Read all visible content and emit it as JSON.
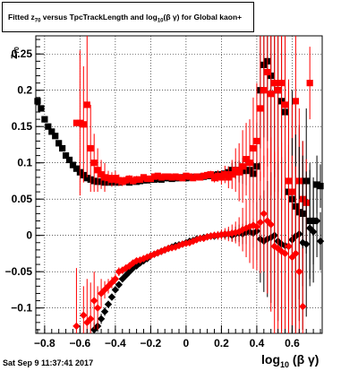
{
  "title": {
    "prefix": "Fitted ",
    "sym": "z",
    "sub": "70",
    "middle": " versus TpcTrackLength and log",
    "sub2": "10",
    "suffix": "(β γ) for Global kaon+"
  },
  "footer": {
    "date": "Sat Sep  9 11:37:41 2017"
  },
  "chart_data": {
    "type": "scatter",
    "title": "Fitted z70 versus TpcTrackLength and log10(β γ) for Global kaon+",
    "xlabel": "log10(β γ)",
    "ylabel": "z70",
    "xlim": [
      -0.85,
      0.77
    ],
    "ylim": [
      -0.135,
      0.275
    ],
    "x_ticks": [
      -0.8,
      -0.6,
      -0.4,
      -0.2,
      0,
      0.2,
      0.4,
      0.6
    ],
    "x_tick_labels": [
      "−0.8",
      "−0.6",
      "−0.4",
      "−0.2",
      "0",
      "0.2",
      "0.4",
      "0.6"
    ],
    "y_ticks": [
      -0.1,
      -0.05,
      0,
      0.05,
      0.1,
      0.15,
      0.2,
      0.25
    ],
    "y_tick_labels": [
      "−0.1",
      "−0.05",
      "0",
      "0.05",
      "0.1",
      "0.15",
      "0.2",
      "0.25"
    ],
    "grid": true,
    "series": [
      {
        "color": "#000000",
        "band": "upper",
        "x": [
          -0.84,
          -0.82,
          -0.8,
          -0.78,
          -0.76,
          -0.74,
          -0.72,
          -0.7,
          -0.68,
          -0.66,
          -0.64,
          -0.62,
          -0.6,
          -0.58,
          -0.56,
          -0.54,
          -0.52,
          -0.5,
          -0.48,
          -0.46,
          -0.44,
          -0.42,
          -0.4,
          -0.38,
          -0.36,
          -0.34,
          -0.32,
          -0.3,
          -0.28,
          -0.26,
          -0.24,
          -0.22,
          -0.2,
          -0.18,
          -0.16,
          -0.14,
          -0.12,
          -0.1,
          -0.08,
          -0.06,
          -0.04,
          -0.02,
          0,
          0.02,
          0.04,
          0.06,
          0.08,
          0.1,
          0.12,
          0.14,
          0.16,
          0.18,
          0.2,
          0.22,
          0.24,
          0.26,
          0.28,
          0.3,
          0.32,
          0.34,
          0.36,
          0.38,
          0.4,
          0.42,
          0.44,
          0.46,
          0.48,
          0.5,
          0.52,
          0.54,
          0.56,
          0.58,
          0.6,
          0.62,
          0.64,
          0.66,
          0.68,
          0.7,
          0.72,
          0.74,
          0.76
        ],
        "y": [
          0.185,
          0.175,
          0.16,
          0.15,
          0.143,
          0.137,
          0.127,
          0.12,
          0.11,
          0.104,
          0.097,
          0.092,
          0.087,
          0.083,
          0.079,
          0.077,
          0.075,
          0.074,
          0.074,
          0.073,
          0.073,
          0.074,
          0.073,
          0.073,
          0.074,
          0.074,
          0.073,
          0.075,
          0.074,
          0.075,
          0.076,
          0.076,
          0.077,
          0.077,
          0.078,
          0.077,
          0.079,
          0.079,
          0.078,
          0.079,
          0.079,
          0.08,
          0.079,
          0.08,
          0.08,
          0.081,
          0.081,
          0.081,
          0.082,
          0.082,
          0.083,
          0.084,
          0.083,
          0.085,
          0.087,
          0.09,
          0.09,
          0.088,
          0.089,
          0.089,
          0.09,
          0.085,
          0.095,
          0.2,
          0.235,
          0.24,
          0.22,
          0.21,
          0.2,
          0.185,
          0.17,
          0.06,
          0.05,
          0.04,
          0.032,
          0.03,
          0.075,
          0.02,
          0.02,
          0.07,
          0.068
        ],
        "err": [
          0,
          0,
          0,
          0,
          0,
          0,
          0,
          0,
          0,
          0,
          0,
          0,
          0.005,
          0.005,
          0.004,
          0.003,
          0.003,
          0.003,
          0.002,
          0.002,
          0.002,
          0.002,
          0.002,
          0.002,
          0.002,
          0.002,
          0.002,
          0.002,
          0.002,
          0.002,
          0.002,
          0.002,
          0.002,
          0.002,
          0.002,
          0.002,
          0.002,
          0.002,
          0.002,
          0.002,
          0.002,
          0.002,
          0.002,
          0.002,
          0.002,
          0.002,
          0.002,
          0.002,
          0.003,
          0.003,
          0.003,
          0.004,
          0.005,
          0.006,
          0.008,
          0.01,
          0.012,
          0.015,
          0.018,
          0.02,
          0.03,
          0.04,
          0.06,
          0.08,
          0.1,
          0.11,
          0.12,
          0.13,
          0.14,
          0.15,
          0.15,
          0.15,
          0.15,
          0.14,
          0.12,
          0.1,
          0.1,
          0.08,
          0.06,
          0.04,
          0.03
        ]
      },
      {
        "color": "#ff0000",
        "band": "upper",
        "x": [
          -0.62,
          -0.6,
          -0.58,
          -0.56,
          -0.54,
          -0.52,
          -0.5,
          -0.48,
          -0.46,
          -0.44,
          -0.42,
          -0.4,
          -0.38,
          -0.36,
          -0.34,
          -0.32,
          -0.3,
          -0.28,
          -0.26,
          -0.24,
          -0.22,
          -0.2,
          -0.18,
          -0.16,
          -0.14,
          -0.12,
          -0.1,
          -0.08,
          -0.06,
          -0.04,
          -0.02,
          0,
          0.02,
          0.04,
          0.06,
          0.08,
          0.1,
          0.12,
          0.14,
          0.16,
          0.18,
          0.2,
          0.22,
          0.24,
          0.26,
          0.28,
          0.3,
          0.32,
          0.34,
          0.36,
          0.38,
          0.4,
          0.42,
          0.44,
          0.46,
          0.48,
          0.5,
          0.52,
          0.54,
          0.56,
          0.58,
          0.6,
          0.62,
          0.64,
          0.66,
          0.68,
          0.7
        ],
        "y": [
          0.155,
          0.155,
          0.153,
          0.18,
          0.12,
          0.1,
          0.09,
          0.084,
          0.08,
          0.079,
          0.077,
          0.079,
          0.076,
          0.074,
          0.076,
          0.078,
          0.075,
          0.077,
          0.077,
          0.08,
          0.078,
          0.078,
          0.081,
          0.082,
          0.08,
          0.081,
          0.081,
          0.08,
          0.081,
          0.08,
          0.079,
          0.082,
          0.081,
          0.079,
          0.081,
          0.08,
          0.082,
          0.083,
          0.084,
          0.079,
          0.082,
          0.08,
          0.084,
          0.08,
          0.084,
          0.09,
          0.087,
          0.095,
          0.105,
          0.1,
          0.12,
          0.13,
          0.175,
          0.2,
          0.225,
          0.195,
          0.21,
          0.2,
          0.21,
          0.18,
          0.075,
          0.06,
          0.185,
          0.075,
          0.05,
          0.045,
          0.21
        ],
        "err": [
          0,
          0.1,
          0.08,
          0.1,
          0.06,
          0.04,
          0.03,
          0.02,
          0.02,
          0.01,
          0.01,
          0.01,
          0.008,
          0.006,
          0.006,
          0.005,
          0.005,
          0.005,
          0.004,
          0.004,
          0.004,
          0.004,
          0.004,
          0.004,
          0.004,
          0.004,
          0.004,
          0.004,
          0.004,
          0.004,
          0.004,
          0.004,
          0.004,
          0.004,
          0.004,
          0.004,
          0.004,
          0.005,
          0.005,
          0.006,
          0.008,
          0.01,
          0.012,
          0.015,
          0.02,
          0.03,
          0.04,
          0.05,
          0.05,
          0.06,
          0.07,
          0.08,
          0.1,
          0.12,
          0.13,
          0.14,
          0.15,
          0.15,
          0.15,
          0.14,
          0.14,
          0.12,
          0.1,
          0.1,
          0.08,
          0.06,
          0.05
        ]
      },
      {
        "color": "#000000",
        "band": "lower",
        "x": [
          -0.52,
          -0.5,
          -0.48,
          -0.46,
          -0.44,
          -0.42,
          -0.4,
          -0.38,
          -0.36,
          -0.34,
          -0.32,
          -0.3,
          -0.28,
          -0.26,
          -0.24,
          -0.22,
          -0.2,
          -0.18,
          -0.16,
          -0.14,
          -0.12,
          -0.1,
          -0.08,
          -0.06,
          -0.04,
          -0.02,
          0,
          0.02,
          0.04,
          0.06,
          0.08,
          0.1,
          0.12,
          0.14,
          0.16,
          0.18,
          0.2,
          0.22,
          0.24,
          0.26,
          0.28,
          0.3,
          0.32,
          0.34,
          0.36,
          0.38,
          0.4,
          0.42,
          0.44,
          0.46,
          0.48,
          0.5,
          0.52,
          0.54,
          0.56,
          0.58,
          0.6,
          0.62,
          0.64,
          0.66,
          0.68,
          0.7,
          0.72,
          0.74,
          0.76
        ],
        "y": [
          -0.13,
          -0.125,
          -0.115,
          -0.105,
          -0.095,
          -0.085,
          -0.075,
          -0.068,
          -0.06,
          -0.055,
          -0.05,
          -0.045,
          -0.042,
          -0.038,
          -0.035,
          -0.032,
          -0.028,
          -0.026,
          -0.024,
          -0.022,
          -0.02,
          -0.018,
          -0.016,
          -0.014,
          -0.013,
          -0.012,
          -0.01,
          -0.008,
          -0.007,
          -0.005,
          -0.004,
          -0.003,
          -0.002,
          -0.001,
          -0.001,
          0,
          0.001,
          0.001,
          0.002,
          0,
          0.002,
          0.003,
          0.002,
          0.004,
          0.005,
          0.003,
          0.006,
          -0.005,
          -0.008,
          -0.005,
          -0.003,
          0,
          -0.008,
          -0.012,
          -0.014,
          -0.015,
          -0.006,
          -0.001,
          0.002,
          -0.01,
          -0.012,
          0.01,
          0.005,
          0.02,
          -0.008
        ],
        "err": [
          0.01,
          0.008,
          0.007,
          0.006,
          0.005,
          0.004,
          0.004,
          0.003,
          0.003,
          0.003,
          0.003,
          0.003,
          0.003,
          0.003,
          0.003,
          0.003,
          0.003,
          0.003,
          0.003,
          0.003,
          0.003,
          0.003,
          0.003,
          0.003,
          0.003,
          0.003,
          0.003,
          0.003,
          0.003,
          0.003,
          0.003,
          0.003,
          0.003,
          0.003,
          0.004,
          0.004,
          0.005,
          0.006,
          0.007,
          0.008,
          0.01,
          0.012,
          0.014,
          0.016,
          0.018,
          0.02,
          0.04,
          0.06,
          0.07,
          0.08,
          0.09,
          0.1,
          0.11,
          0.12,
          0.13,
          0.14,
          0.14,
          0.14,
          0.12,
          0.12,
          0.1,
          0.08,
          0.07,
          0.05,
          0.04
        ]
      },
      {
        "color": "#ff0000",
        "band": "lower",
        "x": [
          -0.62,
          -0.58,
          -0.56,
          -0.54,
          -0.52,
          -0.5,
          -0.48,
          -0.46,
          -0.44,
          -0.42,
          -0.4,
          -0.38,
          -0.36,
          -0.34,
          -0.32,
          -0.3,
          -0.28,
          -0.26,
          -0.24,
          -0.22,
          -0.2,
          -0.18,
          -0.16,
          -0.14,
          -0.12,
          -0.1,
          -0.08,
          -0.06,
          -0.04,
          -0.02,
          0,
          0.02,
          0.04,
          0.06,
          0.08,
          0.1,
          0.12,
          0.14,
          0.16,
          0.18,
          0.2,
          0.22,
          0.24,
          0.26,
          0.28,
          0.3,
          0.32,
          0.34,
          0.36,
          0.38,
          0.4,
          0.42,
          0.44,
          0.46,
          0.48,
          0.5,
          0.52,
          0.54,
          0.56,
          0.58,
          0.6,
          0.62,
          0.64,
          0.66
        ],
        "y": [
          -0.125,
          -0.11,
          -0.12,
          -0.115,
          -0.09,
          -0.1,
          -0.08,
          -0.075,
          -0.07,
          -0.065,
          -0.06,
          -0.05,
          -0.048,
          -0.045,
          -0.042,
          -0.038,
          -0.035,
          -0.034,
          -0.032,
          -0.03,
          -0.028,
          -0.026,
          -0.024,
          -0.022,
          -0.02,
          -0.018,
          -0.017,
          -0.016,
          -0.014,
          -0.012,
          -0.011,
          -0.01,
          -0.008,
          -0.006,
          -0.004,
          -0.004,
          -0.002,
          -0.001,
          0,
          0,
          0.001,
          0.002,
          0.002,
          0.003,
          0.004,
          0.005,
          0.008,
          0.01,
          0.012,
          0.014,
          0.012,
          0.018,
          0.03,
          0.02,
          0.015,
          -0.015,
          -0.018,
          -0.022,
          -0.025,
          -0.015,
          -0.03,
          -0.025,
          -0.05,
          -0.098
        ],
        "err": [
          0.08,
          0.04,
          0.06,
          0.05,
          0.04,
          0.03,
          0.02,
          0.012,
          0.01,
          0.008,
          0.007,
          0.006,
          0.005,
          0.005,
          0.005,
          0.004,
          0.004,
          0.004,
          0.004,
          0.004,
          0.004,
          0.004,
          0.004,
          0.004,
          0.004,
          0.004,
          0.004,
          0.004,
          0.004,
          0.004,
          0.004,
          0.004,
          0.004,
          0.004,
          0.004,
          0.004,
          0.004,
          0.005,
          0.005,
          0.006,
          0.007,
          0.008,
          0.01,
          0.012,
          0.015,
          0.02,
          0.03,
          0.04,
          0.05,
          0.06,
          0.06,
          0.07,
          0.08,
          0.1,
          0.12,
          0.13,
          0.14,
          0.15,
          0.15,
          0.15,
          0.14,
          0.12,
          0.1,
          0.08
        ]
      }
    ]
  }
}
